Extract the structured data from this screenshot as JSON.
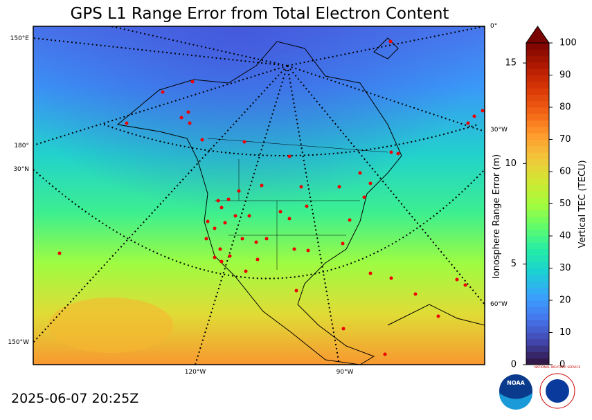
{
  "title": "GPS L1 Range Error from Total Electron Content",
  "timestamp": "2025-06-07 20:25Z",
  "map": {
    "graticule_labels": [
      "150°E",
      "180°",
      "30°N",
      "150°W",
      "120°W",
      "90°W",
      "0°",
      "30°W",
      "60°W"
    ]
  },
  "colorbar": {
    "label": "Vertical TEC (TECU)",
    "lim": [
      0,
      100
    ],
    "ticks": [
      0,
      10,
      20,
      30,
      40,
      50,
      60,
      70,
      80,
      90,
      100
    ],
    "colors": [
      "#30123b",
      "#4145ab",
      "#4675ed",
      "#39a2fc",
      "#1bcfd4",
      "#24eca6",
      "#61fc6c",
      "#a4fc3b",
      "#d1e834",
      "#f3c63a",
      "#fe9b2d",
      "#f36315",
      "#d93806",
      "#b11901",
      "#7a0402"
    ],
    "extend_color": "#7a0402",
    "range_axis": {
      "label": "Ionosphere Range Error (m)",
      "lim": [
        0,
        16
      ],
      "ticks": [
        0,
        5,
        10,
        15
      ]
    }
  },
  "logos": {
    "noaa": "NOAA",
    "nws": "NATIONAL WEATHER SERVICE"
  }
}
